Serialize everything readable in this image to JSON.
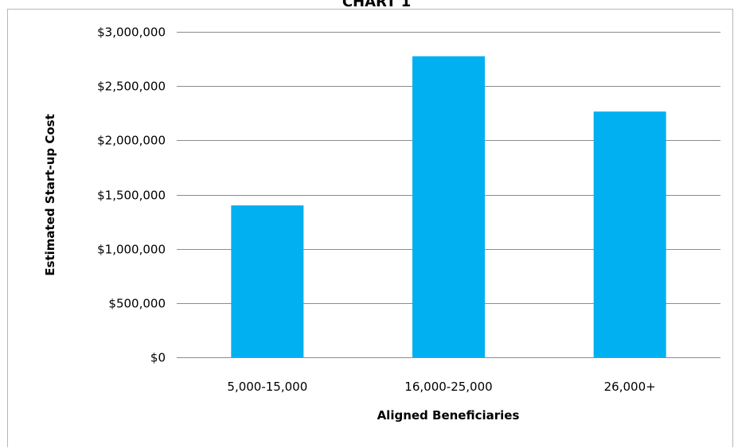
{
  "chart_data": {
    "type": "bar",
    "title": "CHART 1",
    "xlabel": "Aligned Beneficiaries",
    "ylabel": "Estimated Start-up Cost",
    "categories": [
      "5,000-15,000",
      "16,000-25,000",
      "26,000+"
    ],
    "values": [
      1400000,
      2775000,
      2265000
    ],
    "ylim": [
      0,
      3000000
    ],
    "yticks": [
      0,
      500000,
      1000000,
      1500000,
      2000000,
      2500000,
      3000000
    ],
    "ytick_labels": [
      "$0",
      "$500,000",
      "$1,000,000",
      "$1,500,000",
      "$2,000,000",
      "$2,500,000",
      "$3,000,000"
    ],
    "grid": true,
    "legend": "none",
    "bar_color": "#00b0f0"
  }
}
